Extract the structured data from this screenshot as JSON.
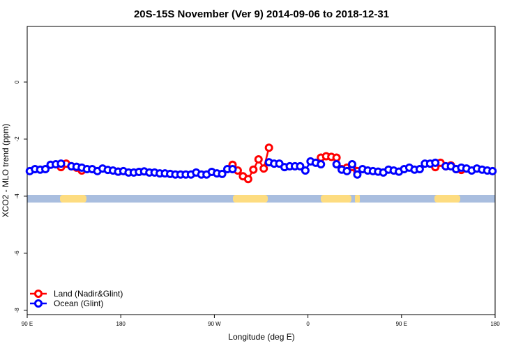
{
  "chart_data": {
    "type": "line",
    "title": "20S-15S November (Ver 9)   2014-09-06 to 2018-12-31",
    "xlabel": "Longitude (deg E)",
    "ylabel": "XCO2 - MLO trend (ppm)",
    "x": [
      92.5,
      97.5,
      102.5,
      107.5,
      112.5,
      117.5,
      122.5,
      127.5,
      132.5,
      137.5,
      142.5,
      147.5,
      152.5,
      157.5,
      162.5,
      167.5,
      172.5,
      177.5,
      182.5,
      187.5,
      192.5,
      197.5,
      202.5,
      207.5,
      212.5,
      217.5,
      222.5,
      227.5,
      232.5,
      237.5,
      242.5,
      247.5,
      252.5,
      257.5,
      262.5,
      267.5,
      272.5,
      277.5,
      282.5,
      287.5,
      292.5,
      297.5,
      302.5,
      307.5,
      312.5,
      317.5,
      322.5,
      327.5,
      332.5,
      337.5,
      342.5,
      347.5,
      352.5,
      357.5,
      362.5,
      367.5,
      372.5,
      377.5,
      382.5,
      387.5,
      392.5,
      397.5,
      402.5,
      407.5,
      412.5,
      417.5,
      422.5,
      427.5,
      432.5,
      437.5,
      442.5,
      447.5,
      452.5,
      457.5,
      462.5,
      467.5,
      472.5,
      477.5,
      482.5,
      487.5,
      492.5,
      497.5,
      502.5,
      507.5,
      512.5,
      517.5,
      522.5,
      527.5,
      532.5,
      537.5
    ],
    "series": [
      {
        "name": "Land (Nadir&Glint)",
        "color": "#ff0000",
        "values": [
          null,
          null,
          null,
          null,
          null,
          null,
          -2.98,
          -2.86,
          -2.95,
          -3.0,
          -3.1,
          null,
          null,
          null,
          null,
          null,
          null,
          -3.14,
          null,
          null,
          null,
          null,
          null,
          null,
          null,
          null,
          null,
          null,
          null,
          null,
          null,
          null,
          null,
          null,
          null,
          null,
          null,
          null,
          null,
          -2.9,
          -3.1,
          -3.3,
          -3.4,
          -3.07,
          -2.71,
          -3.03,
          -2.3,
          null,
          null,
          null,
          null,
          null,
          null,
          null,
          null,
          null,
          -2.65,
          -2.6,
          -2.62,
          -2.65,
          -3.05,
          -3.0,
          -2.98,
          -3.12,
          null,
          null,
          null,
          null,
          null,
          null,
          null,
          null,
          null,
          null,
          null,
          null,
          null,
          null,
          -2.98,
          -2.83,
          -2.95,
          -2.92,
          -3.05,
          -3.08,
          null,
          null,
          null,
          null,
          null,
          null
        ]
      },
      {
        "name": "Ocean (Glint)",
        "color": "#0000ff",
        "values": [
          -3.12,
          -3.05,
          -3.07,
          -3.05,
          -2.9,
          -2.88,
          -2.86,
          null,
          -2.95,
          -2.97,
          -3.0,
          -3.05,
          -3.05,
          -3.12,
          -3.03,
          -3.08,
          -3.1,
          -3.14,
          -3.12,
          -3.17,
          -3.17,
          -3.15,
          -3.13,
          -3.17,
          -3.17,
          -3.2,
          -3.2,
          -3.22,
          -3.24,
          -3.24,
          -3.24,
          -3.24,
          -3.17,
          -3.24,
          -3.24,
          -3.15,
          -3.2,
          -3.22,
          -3.05,
          -3.05,
          null,
          null,
          null,
          null,
          null,
          null,
          -2.81,
          -2.86,
          -2.86,
          -2.98,
          -2.95,
          -2.95,
          -2.95,
          -3.1,
          -2.78,
          -2.83,
          -2.88,
          null,
          null,
          -2.88,
          -3.07,
          -3.12,
          -2.88,
          -3.24,
          -3.05,
          -3.1,
          -3.12,
          -3.14,
          -3.17,
          -3.07,
          -3.1,
          -3.14,
          -3.05,
          -3.0,
          -3.07,
          -3.05,
          -2.86,
          -2.86,
          -2.83,
          null,
          -2.95,
          -2.95,
          -3.05,
          -3.0,
          -3.03,
          -3.1,
          -3.03,
          -3.07,
          -3.1,
          -3.12
        ]
      }
    ],
    "xlim": [
      90,
      540
    ],
    "xticks": [
      {
        "value": 90,
        "label": "90 E"
      },
      180,
      {
        "value": 270,
        "label": "90 W"
      },
      {
        "value": 360,
        "label": "0"
      },
      {
        "value": 450,
        "label": "90 E"
      },
      {
        "value": 540,
        "label": "180"
      }
    ],
    "ylim": [
      -8.15,
      1.95
    ],
    "yticks": [
      0,
      -2,
      -4,
      -6,
      -8
    ],
    "legend": "bottom-left"
  }
}
